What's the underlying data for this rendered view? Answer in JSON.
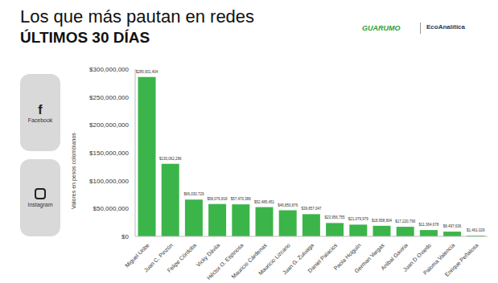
{
  "chart_data": {
    "type": "bar",
    "title": "Los que más pautan en redes",
    "subtitle": "ÚLTIMOS 30 DÍAS",
    "annotations": [
      "GUARUMO",
      "EcoAnalítica",
      "Facebook",
      "Instagram"
    ],
    "y_label": "Valores en pesos colombianos",
    "categories": [
      "Miguel Uribe",
      "Juan C. Pinzón",
      "Felipe Córdoba",
      "Vicky Dávila",
      "Héctor O. Espinosa",
      "Mauricio Cárdenas",
      "Mauricio Lizcano",
      "Juan G. Zuluaga",
      "Daniel Palacios",
      "Paola Holguín",
      "German Vargas",
      "Aníbal Gaviria",
      "Juan D Oviedo",
      "Paloma Valencia",
      "Enrique Peñalosa"
    ],
    "values": [
      285901404,
      130062296,
      66030729,
      58076818,
      57470386,
      52485451,
      46850876,
      39857047,
      23956755,
      21079979,
      18958904,
      17220796,
      11364678,
      8497636,
      1461029
    ],
    "value_labels": [
      "$285,901,404",
      "$130,062,296",
      "$66,030,729",
      "$58,076,818",
      "$57,470,386",
      "$52,485,451",
      "$46,850,876",
      "$39,857,047",
      "$23,956,755",
      "$21,079,979",
      "$18,958,904",
      "$17,220,796",
      "$11,364,678",
      "$8,497,636",
      "$1,461,029"
    ],
    "data_labels": true,
    "color": "#3bb54a",
    "ylim": [
      0,
      300000000
    ],
    "yticks": [
      {
        "value": 0,
        "label": "$0"
      },
      {
        "value": 50000000,
        "label": "$50,000,000"
      },
      {
        "value": 100000000,
        "label": "$100,000,000"
      },
      {
        "value": 150000000,
        "label": "$150,000,000"
      },
      {
        "value": 200000000,
        "label": "$200,000,000"
      },
      {
        "value": 250000000,
        "label": "$250,000,000"
      },
      {
        "value": 300000000,
        "label": "$300,000,000"
      }
    ],
    "grid": false
  }
}
